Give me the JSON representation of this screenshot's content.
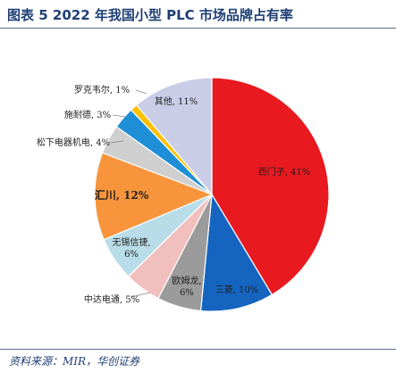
{
  "title": "图表 5  2022 年我国小型 PLC 市场品牌占有率",
  "source": "资料来源：MIR，华创证券",
  "chart_data": {
    "type": "pie",
    "title": "图表 5  2022 年我国小型 PLC 市场品牌占有率",
    "start_angle_deg": 0,
    "direction": "clockwise",
    "slices": [
      {
        "label": "西门子, 41%",
        "value": 41,
        "color": "#e8191f"
      },
      {
        "label": "三菱, 10%",
        "value": 10,
        "color": "#1565c0"
      },
      {
        "label": "欧姆龙,\n6%",
        "value": 6,
        "color": "#9b9b9b"
      },
      {
        "label": "中达电通, 5%",
        "value": 5,
        "color": "#f2bfbf"
      },
      {
        "label": "无锡信捷,\n6%",
        "value": 6,
        "color": "#b9dde8"
      },
      {
        "label": "汇川, 12%",
        "value": 12,
        "color": "#f7943c",
        "bold": true
      },
      {
        "label": "松下电器机电, 4%",
        "value": 4,
        "color": "#cfcfcf"
      },
      {
        "label": "施耐德, 3%",
        "value": 3,
        "color": "#1e8fd6"
      },
      {
        "label": "罗克韦尔, 1%",
        "value": 1,
        "color": "#ffc000"
      },
      {
        "label": "其他, 11%",
        "value": 11,
        "color": "#c9cde6"
      }
    ]
  }
}
